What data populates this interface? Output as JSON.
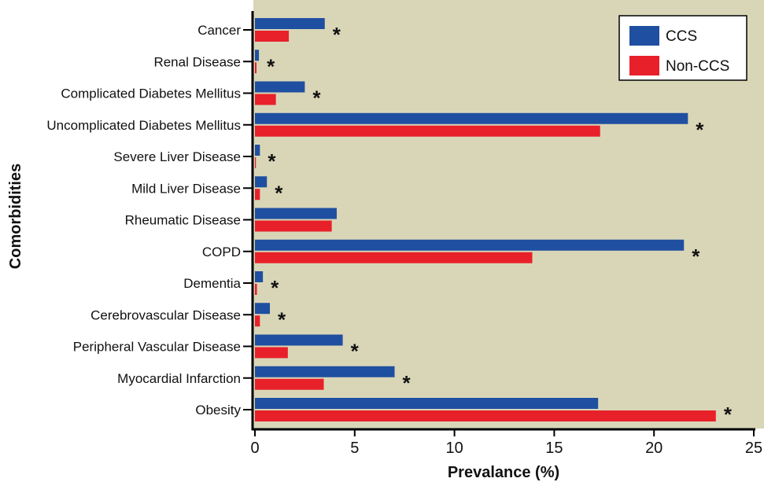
{
  "chart_data": {
    "type": "bar",
    "orientation": "horizontal",
    "title": "",
    "xlabel": "Prevalance (%)",
    "ylabel": "Comorbidities",
    "xlim": [
      0,
      25
    ],
    "xticks": [
      0,
      5,
      10,
      15,
      20,
      25
    ],
    "grid": false,
    "legend_position": "top-right",
    "plot_background": "#d9d6b8",
    "categories": [
      "Cancer",
      "Renal Disease",
      "Complicated Diabetes Mellitus",
      "Uncomplicated Diabetes Mellitus",
      "Severe Liver Disease",
      "Mild Liver Disease",
      "Rheumatic Disease",
      "COPD",
      "Dementia",
      "Cerebrovascular Disease",
      "Peripheral Vascular Disease",
      "Myocardial Infarction",
      "Obesity"
    ],
    "series": [
      {
        "name": "CCS",
        "color": "#1f4fa0",
        "values": [
          3.5,
          0.2,
          2.5,
          21.7,
          0.25,
          0.6,
          4.1,
          21.5,
          0.4,
          0.75,
          4.4,
          7.0,
          17.2
        ]
      },
      {
        "name": "Non-CCS",
        "color": "#e8202a",
        "values": [
          1.7,
          0.08,
          1.05,
          17.3,
          0.05,
          0.25,
          3.85,
          13.9,
          0.1,
          0.25,
          1.65,
          3.45,
          23.1
        ]
      }
    ],
    "significance_marker": "*",
    "significant": [
      true,
      true,
      true,
      true,
      true,
      true,
      false,
      true,
      true,
      true,
      true,
      true,
      true
    ]
  }
}
